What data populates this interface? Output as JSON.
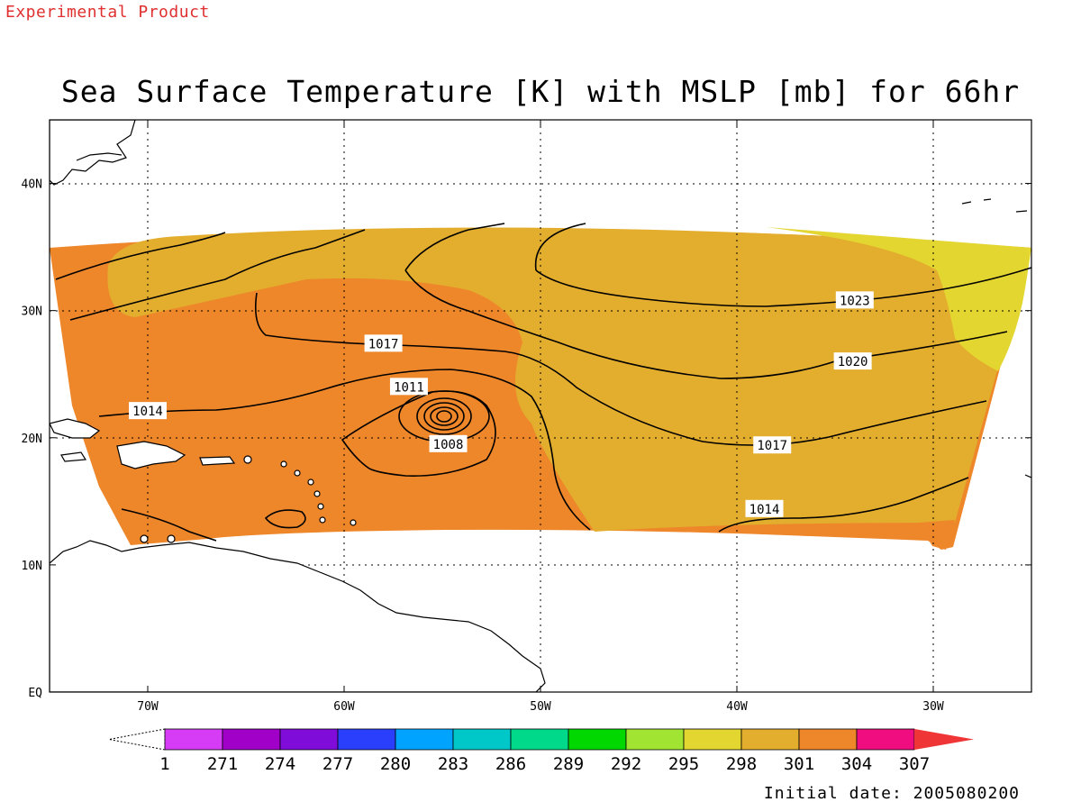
{
  "header": {
    "tag": "Experimental Product"
  },
  "title": "Sea Surface Temperature [K] with MSLP [mb] for 66hr",
  "footer": {
    "initial_date": "Initial date: 2005080200"
  },
  "map": {
    "lon_range": [
      -75,
      -25
    ],
    "lat_range": [
      0,
      45
    ],
    "lon_ticks": [
      {
        "lon": -70,
        "label": "70W"
      },
      {
        "lon": -60,
        "label": "60W"
      },
      {
        "lon": -50,
        "label": "50W"
      },
      {
        "lon": -40,
        "label": "40W"
      },
      {
        "lon": -30,
        "label": "30W"
      }
    ],
    "lat_ticks": [
      {
        "lat": 40,
        "label": "40N"
      },
      {
        "lat": 30,
        "label": "30N"
      },
      {
        "lat": 20,
        "label": "20N"
      },
      {
        "lat": 10,
        "label": "10N"
      },
      {
        "lat": 0,
        "label": "EQ"
      }
    ],
    "grid": "dotted",
    "sst_colors": {
      "band_298": "#e3d630",
      "band_301": "#e3ad2e",
      "band_304": "#ee862a",
      "band_307": "#ef0d80"
    },
    "contour_labels": [
      {
        "text": "1023",
        "lon": -34.0,
        "lat": 30.8
      },
      {
        "text": "1020",
        "lon": -34.1,
        "lat": 26.0
      },
      {
        "text": "1017",
        "lon": -58.0,
        "lat": 27.4
      },
      {
        "text": "1017",
        "lon": -38.2,
        "lat": 19.4
      },
      {
        "text": "1014",
        "lon": -70.0,
        "lat": 22.1
      },
      {
        "text": "1014",
        "lon": -38.6,
        "lat": 14.4
      },
      {
        "text": "1011",
        "lon": -56.7,
        "lat": 24.0
      },
      {
        "text": "1008",
        "lon": -54.7,
        "lat": 19.5
      }
    ]
  },
  "colorbar": {
    "labels": [
      "1",
      "271",
      "274",
      "277",
      "280",
      "283",
      "286",
      "289",
      "292",
      "295",
      "298",
      "301",
      "304",
      "307"
    ],
    "colors": [
      "#d63cf5",
      "#a100c9",
      "#7f0cd9",
      "#2a3ffb",
      "#00a3ff",
      "#00c8c8",
      "#00d98a",
      "#00d800",
      "#a1e532",
      "#e3d630",
      "#e3ad2e",
      "#ee862a",
      "#ef0d80"
    ],
    "overflow_color": "#ef3535"
  }
}
